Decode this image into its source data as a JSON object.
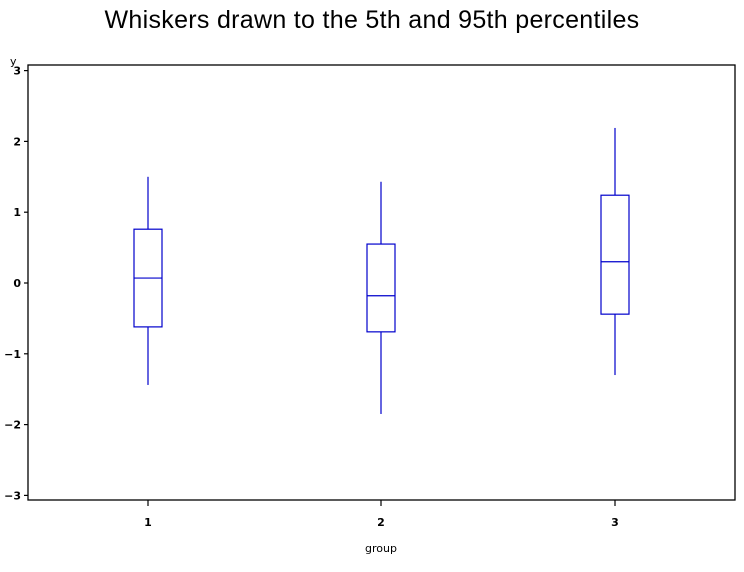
{
  "chart_data": {
    "type": "box",
    "title": "Whiskers drawn to the 5th and 95th percentiles",
    "xlabel": "group",
    "ylabel": "y",
    "categories": [
      "1",
      "2",
      "3"
    ],
    "ylim": [
      -3,
      3
    ],
    "yticks": [
      -3,
      -2,
      -1,
      0,
      1,
      2,
      3
    ],
    "grid": false,
    "legend": null,
    "color": "#0000cc",
    "boxes": [
      {
        "group": "1",
        "p5": -1.44,
        "q1": -0.62,
        "median": 0.07,
        "q3": 0.76,
        "p95": 1.5
      },
      {
        "group": "2",
        "p5": -1.85,
        "q1": -0.69,
        "median": -0.18,
        "q3": 0.55,
        "p95": 1.43
      },
      {
        "group": "3",
        "p5": -1.3,
        "q1": -0.44,
        "median": 0.3,
        "q3": 1.24,
        "p95": 2.19
      }
    ]
  }
}
